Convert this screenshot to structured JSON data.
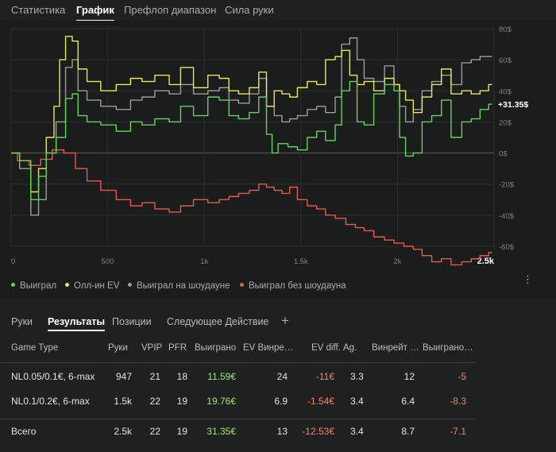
{
  "top_tabs": [
    "Статистика",
    "График",
    "Префлоп диапазон",
    "Сила руки"
  ],
  "colors": {
    "won": "#69cf63",
    "allin_ev": "#e8e65d",
    "showdown": "#9a9d9b",
    "non_showdown": "#e35a4d"
  },
  "chart_data": {
    "type": "line",
    "xlim": [
      0,
      2500
    ],
    "ylim": [
      -60,
      80
    ],
    "x_ticks": [
      "0",
      "500",
      "1k",
      "1.5k",
      "2k",
      "2.5k"
    ],
    "y_ticks": [
      "80$",
      "60$",
      "40$",
      "20$",
      "0$",
      "-20$",
      "-40$",
      "-60$"
    ],
    "current_value_label": "+31.35$",
    "grid": true,
    "legend_position": "bottom-left",
    "series": [
      {
        "name": "Выиграл",
        "color": "#69cf63",
        "x": [
          0,
          80,
          120,
          160,
          200,
          260,
          300,
          330,
          360,
          420,
          500,
          580,
          650,
          700,
          780,
          850,
          900,
          980,
          1050,
          1100,
          1150,
          1200,
          1260,
          1300,
          1340,
          1360,
          1400,
          1460,
          1500,
          1560,
          1600,
          1650,
          1700,
          1720,
          1780,
          1800,
          1850,
          1900,
          1960,
          2000,
          2020,
          2060,
          2100,
          2150,
          2200,
          2250,
          2300,
          2360,
          2400,
          2450,
          2490
        ],
        "y": [
          0,
          -5,
          -30,
          -15,
          0,
          10,
          35,
          38,
          24,
          20,
          18,
          14,
          20,
          18,
          22,
          20,
          30,
          24,
          36,
          34,
          24,
          22,
          26,
          36,
          12,
          0,
          6,
          4,
          2,
          10,
          14,
          8,
          18,
          40,
          46,
          20,
          18,
          38,
          44,
          40,
          10,
          -2,
          0,
          20,
          24,
          34,
          10,
          20,
          22,
          28,
          31.35
        ]
      },
      {
        "name": "Олл-ин EV",
        "color": "#e8e65d",
        "x": [
          0,
          80,
          120,
          160,
          200,
          240,
          260,
          300,
          330,
          360,
          420,
          500,
          580,
          650,
          700,
          780,
          850,
          900,
          980,
          1050,
          1100,
          1150,
          1200,
          1260,
          1300,
          1340,
          1380,
          1420,
          1460,
          1500,
          1560,
          1600,
          1650,
          1700,
          1720,
          1780,
          1800,
          1850,
          1900,
          1960,
          2000,
          2020,
          2060,
          2100,
          2150,
          2200,
          2250,
          2300,
          2360,
          2400,
          2450,
          2490
        ],
        "y": [
          0,
          -5,
          -25,
          -10,
          10,
          30,
          60,
          75,
          72,
          54,
          46,
          40,
          44,
          48,
          46,
          50,
          44,
          55,
          42,
          50,
          48,
          40,
          38,
          42,
          52,
          30,
          40,
          38,
          36,
          42,
          46,
          44,
          60,
          62,
          66,
          50,
          44,
          46,
          40,
          48,
          44,
          40,
          34,
          26,
          36,
          44,
          54,
          38,
          40,
          38,
          40,
          44
        ]
      },
      {
        "name": "Выиграл на шоудауне",
        "color": "#9a9d9b",
        "x": [
          0,
          80,
          120,
          160,
          200,
          260,
          300,
          330,
          360,
          420,
          500,
          580,
          650,
          700,
          780,
          850,
          900,
          980,
          1050,
          1100,
          1150,
          1200,
          1260,
          1300,
          1340,
          1380,
          1420,
          1460,
          1500,
          1560,
          1600,
          1650,
          1700,
          1720,
          1780,
          1800,
          1850,
          1900,
          1960,
          2000,
          2020,
          2060,
          2100,
          2150,
          2200,
          2250,
          2300,
          2360,
          2400,
          2450,
          2490
        ],
        "y": [
          0,
          -10,
          -40,
          -30,
          0,
          20,
          55,
          60,
          40,
          34,
          30,
          28,
          34,
          36,
          40,
          38,
          44,
          38,
          40,
          42,
          34,
          32,
          38,
          48,
          30,
          24,
          20,
          22,
          24,
          28,
          30,
          26,
          36,
          70,
          74,
          60,
          48,
          46,
          56,
          44,
          30,
          20,
          28,
          40,
          46,
          50,
          44,
          58,
          60,
          62,
          62
        ]
      },
      {
        "name": "Выиграл без шоудауна",
        "color": "#e35a4d",
        "x": [
          0,
          60,
          120,
          180,
          240,
          300,
          360,
          420,
          500,
          580,
          650,
          700,
          780,
          850,
          900,
          980,
          1050,
          1100,
          1150,
          1200,
          1260,
          1300,
          1340,
          1380,
          1420,
          1460,
          1500,
          1560,
          1600,
          1650,
          1700,
          1760,
          1800,
          1850,
          1900,
          1960,
          2000,
          2060,
          2100,
          2150,
          2200,
          2250,
          2300,
          2360,
          2400,
          2450,
          2490
        ],
        "y": [
          0,
          -5,
          -8,
          -4,
          2,
          0,
          -10,
          -18,
          -24,
          -30,
          -34,
          -32,
          -36,
          -38,
          -34,
          -30,
          -32,
          -30,
          -28,
          -26,
          -24,
          -20,
          -22,
          -24,
          -26,
          -22,
          -30,
          -34,
          -36,
          -40,
          -42,
          -46,
          -48,
          -50,
          -54,
          -56,
          -58,
          -60,
          -62,
          -66,
          -70,
          -68,
          -72,
          -70,
          -68,
          -66,
          -64
        ]
      }
    ]
  },
  "legend": [
    {
      "label": "Выиграл",
      "color": "#69cf63"
    },
    {
      "label": "Олл-ин EV",
      "color": "#e8e65d"
    },
    {
      "label": "Выиграл на шоудауне",
      "color": "#9a9d9b"
    },
    {
      "label": "Выиграл без шоудауна",
      "color": "#e35a4d"
    }
  ],
  "more_icon": "⋮",
  "bottom_tabs": [
    "Руки",
    "Результаты",
    "Позиции",
    "Следующее Действие"
  ],
  "add_tab_icon": "+",
  "table": {
    "headers": [
      "Game Type",
      "Руки",
      "VPIP",
      "PFR",
      "Выиграно",
      "EV Винре…",
      "EV diff.",
      "Ag.",
      "Винрейт …",
      "Выиграно…"
    ],
    "rows": [
      {
        "game": "NL0.05/0.1€, 6-max",
        "hands": "947",
        "vpip": "21",
        "pfr": "18",
        "won": "11.59€",
        "ev_winrate": "24",
        "ev_diff": "-11€",
        "ag": "3.3",
        "winrate": "12",
        "won2": "-5"
      },
      {
        "game": "NL0.1/0.2€, 6-max",
        "hands": "1.5k",
        "vpip": "22",
        "pfr": "19",
        "won": "19.76€",
        "ev_winrate": "6.9",
        "ev_diff": "-1.54€",
        "ag": "3.4",
        "winrate": "6.4",
        "won2": "-8.3"
      }
    ],
    "total": {
      "game": "Всего",
      "hands": "2.5k",
      "vpip": "22",
      "pfr": "19",
      "won": "31.35€",
      "ev_winrate": "13",
      "ev_diff": "-12.53€",
      "ag": "3.4",
      "winrate": "8.7",
      "won2": "-7.1"
    }
  }
}
